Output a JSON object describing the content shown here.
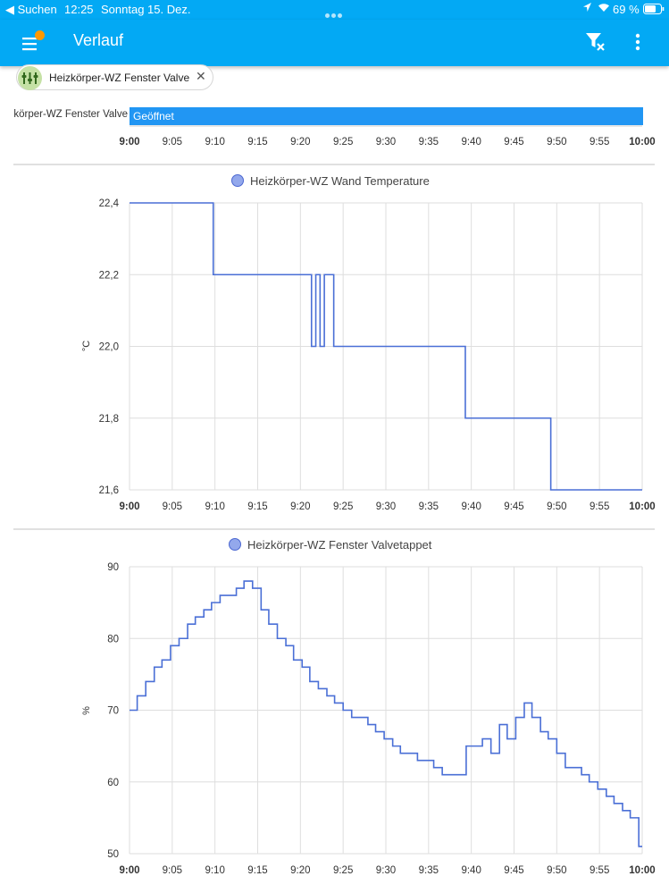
{
  "status_bar": {
    "back": "◀ Suchen",
    "time": "12:25",
    "date": "Sonntag 15. Dez.",
    "battery": "69 %"
  },
  "app_bar": {
    "title": "Verlauf",
    "menu_icon": "menu-icon",
    "filter_icon": "filter-remove-icon",
    "more_icon": "more-vertical-icon",
    "accent": "#03a9f4",
    "badge_color": "#ff9800"
  },
  "filter_chip": {
    "label": "Heizkörper-WZ Fenster Valve",
    "icon": "radiator-valve-icon",
    "close": "✕"
  },
  "timeline": {
    "entity": "körper-WZ Fenster Valve",
    "state": "Geöffnet",
    "bar_color": "#2196f3",
    "x_ticks": [
      "9:00",
      "9:05",
      "9:10",
      "9:15",
      "9:20",
      "9:25",
      "9:30",
      "9:35",
      "9:40",
      "9:45",
      "9:50",
      "9:55",
      "10:00"
    ]
  },
  "chart_data": [
    {
      "type": "line",
      "title": "Heizkörper-WZ Wand Temperature",
      "ylabel": "°C",
      "ylim": [
        21.6,
        22.4
      ],
      "yticks": [
        "22,4",
        "22,2",
        "22,0",
        "21,8",
        "21,6"
      ],
      "xticks": [
        "9:00",
        "9:05",
        "9:10",
        "9:15",
        "9:20",
        "9:25",
        "9:30",
        "9:35",
        "9:40",
        "9:45",
        "9:50",
        "9:55",
        "10:00"
      ],
      "x_range_min": [
        0,
        60
      ],
      "step": true,
      "color": "#4a6fd6",
      "series": [
        {
          "x": [
            0,
            9.8,
            9.8,
            21.3,
            21.3,
            21.8,
            21.8,
            22.3,
            22.3,
            22.8,
            22.8,
            23.3,
            23.3,
            23.9,
            23.9,
            39.3,
            39.3,
            49.3,
            49.3,
            60
          ],
          "y": [
            22.4,
            22.4,
            22.2,
            22.2,
            22.0,
            22.0,
            22.2,
            22.2,
            22.0,
            22.0,
            22.2,
            22.2,
            22.2,
            22.2,
            22.0,
            22.0,
            21.8,
            21.8,
            21.6,
            21.6
          ]
        }
      ],
      "grid": true
    },
    {
      "type": "line",
      "title": "Heizkörper-WZ Fenster Valvetappet",
      "ylabel": "%",
      "ylim": [
        50,
        90
      ],
      "yticks": [
        "90",
        "80",
        "70",
        "60",
        "50"
      ],
      "xticks": [
        "9:00",
        "9:05",
        "9:10",
        "9:15",
        "9:20",
        "9:25",
        "9:30",
        "9:35",
        "9:40",
        "9:45",
        "9:50",
        "9:55",
        "10:00"
      ],
      "x_range_min": [
        0,
        60
      ],
      "step": true,
      "color": "#4a6fd6",
      "series": [
        {
          "x": [
            0,
            0.9,
            1.9,
            2.9,
            3.8,
            4.8,
            5.8,
            6.8,
            7.7,
            8.7,
            9.6,
            10.6,
            12.5,
            13.4,
            14.4,
            15.4,
            16.3,
            17.3,
            18.3,
            19.2,
            20.2,
            21.1,
            22.1,
            23.1,
            24.0,
            25.0,
            26.0,
            26.9,
            27.9,
            28.8,
            29.8,
            30.8,
            31.7,
            32.7,
            33.7,
            35.6,
            36.6,
            37.5,
            39.4,
            41.3,
            42.3,
            43.3,
            44.2,
            45.2,
            46.2,
            47.1,
            48.1,
            49.0,
            50.0,
            51.0,
            52.9,
            53.8,
            54.8,
            55.8,
            56.7,
            57.7,
            58.6,
            59.6,
            60
          ],
          "y": [
            70,
            72,
            74,
            76,
            77,
            79,
            80,
            82,
            83,
            84,
            85,
            86,
            87,
            88,
            87,
            84,
            82,
            80,
            79,
            77,
            76,
            74,
            73,
            72,
            71,
            70,
            69,
            69,
            68,
            67,
            66,
            65,
            64,
            64,
            63,
            62,
            61,
            61,
            65,
            66,
            64,
            68,
            66,
            69,
            71,
            69,
            67,
            66,
            64,
            62,
            61,
            60,
            59,
            58,
            57,
            56,
            55,
            51,
            51
          ]
        }
      ],
      "grid": true
    }
  ]
}
